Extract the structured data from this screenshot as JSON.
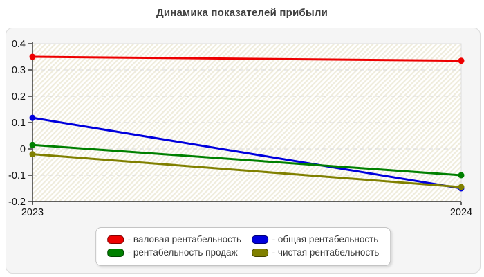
{
  "title": "Динамика показателей прибыли",
  "legend": {
    "prefix": "- ",
    "position": "bottom"
  },
  "chart_data": {
    "type": "line",
    "x_labels": [
      "2023",
      "2024"
    ],
    "ylim": [
      -0.2,
      0.4
    ],
    "yticks": [
      "0.4",
      "0.3",
      "0.2",
      "0.1",
      "0",
      "-0.1",
      "-0.2"
    ],
    "grid": true,
    "grid_style": "dashed",
    "legend_position": "bottom",
    "series": [
      {
        "name": "валовая рентабельность",
        "color": "#ee0000",
        "values": [
          0.35,
          0.335
        ]
      },
      {
        "name": "общая рентабельность",
        "color": "#0000dd",
        "values": [
          0.118,
          -0.15
        ]
      },
      {
        "name": "рентабельность продаж",
        "color": "#008000",
        "values": [
          0.015,
          -0.1
        ]
      },
      {
        "name": "чистая рентабельность",
        "color": "#808000",
        "values": [
          -0.02,
          -0.145
        ]
      }
    ]
  },
  "colors": {
    "panel_bg": "#f5f5f5",
    "panel_border": "#dcdcdc",
    "plot_border": "#dddddd",
    "grid": "#d9d9d9",
    "axis": "#2a2a2a",
    "tick_label": "#111111",
    "hatch_stripe": "#efecdc",
    "title": "#3f3f3f"
  }
}
